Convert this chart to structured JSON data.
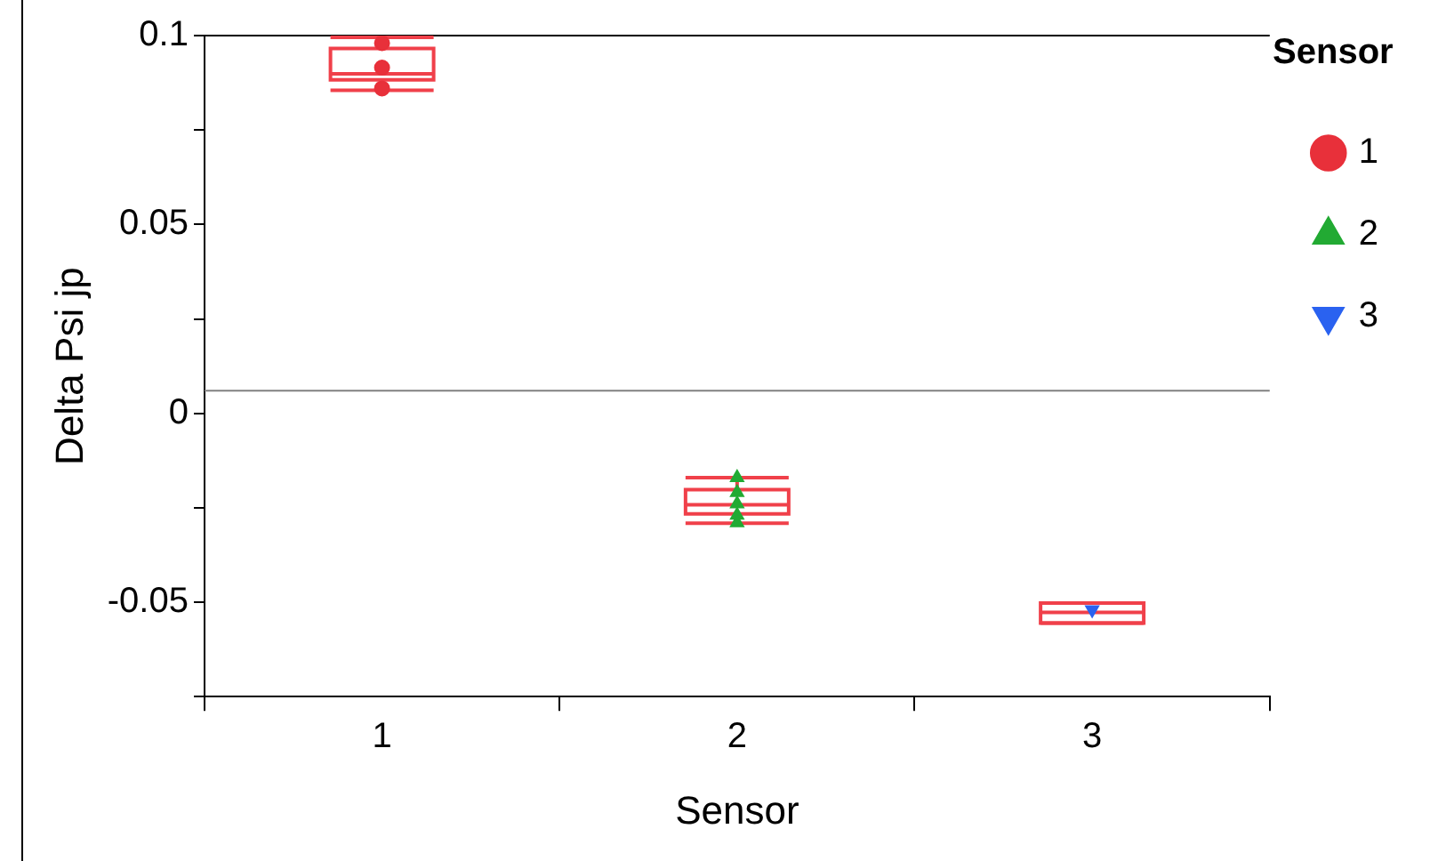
{
  "chart_data": {
    "type": "box",
    "xlabel": "Sensor",
    "ylabel": "Delta Psi jp",
    "legend_title": "Sensor",
    "categories": [
      "1",
      "2",
      "3"
    ],
    "ylim": [
      -0.075,
      0.1
    ],
    "yticks": [
      {
        "value": -0.075,
        "label": null
      },
      -0.05,
      {
        "value": -0.025,
        "label": null
      },
      0,
      {
        "value": 0.025,
        "label": null
      },
      0.05,
      {
        "value": 0.075,
        "label": null
      },
      0.1
    ],
    "grid": false,
    "legend": "top right",
    "ref_lines": [
      {
        "axis": "y",
        "value": 0.006,
        "color": "#808080"
      }
    ],
    "series": [
      {
        "color": "#f0404a",
        "boxes": [
          {
            "low": 0.0855,
            "q1": 0.0883,
            "median": 0.0899,
            "q3": 0.0966,
            "high": 0.0995
          },
          {
            "low": -0.0291,
            "q1": -0.0266,
            "median": -0.0242,
            "q3": -0.0202,
            "high": -0.017
          },
          {
            "low": -0.0555,
            "q1": -0.0555,
            "median": -0.0527,
            "q3": -0.0502,
            "high": -0.0502
          }
        ]
      },
      {
        "type": "scatter",
        "name": "1",
        "color": "#e8303a",
        "marker": "circle",
        "x": [
          "1",
          "1",
          "1"
        ],
        "values": [
          0.098,
          0.0915,
          0.086
        ]
      },
      {
        "type": "scatter",
        "name": "2",
        "color": "#22aa33",
        "marker": "triangle",
        "x": [
          "2",
          "2",
          "2",
          "2",
          "2"
        ],
        "values": [
          -0.017,
          -0.021,
          -0.024,
          -0.027,
          -0.029
        ]
      },
      {
        "type": "scatter",
        "name": "3",
        "color": "#2a62f0",
        "marker": "triangle-down",
        "x": [
          "3"
        ],
        "values": [
          -0.052
        ]
      }
    ]
  }
}
